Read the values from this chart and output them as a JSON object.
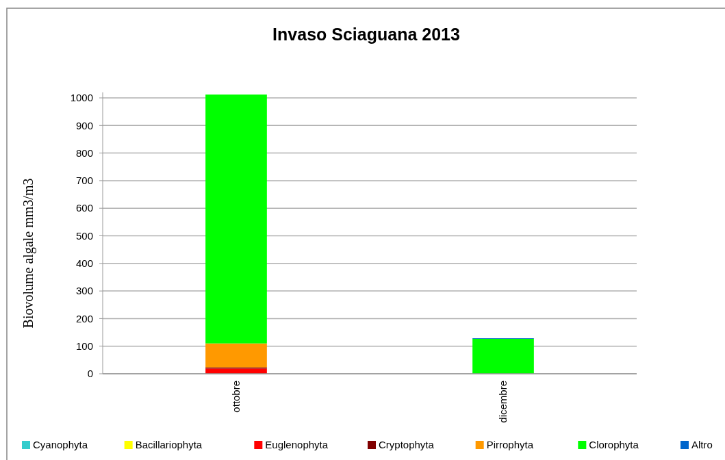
{
  "chart_data": {
    "type": "bar",
    "title": "Invaso Sciaguana 2013",
    "ylabel": "Biovolume algale mm3/m3",
    "categories": [
      "ottobre",
      "dicembre"
    ],
    "stacked": true,
    "series": [
      {
        "name": "Cyanophyta",
        "color": "#33cccc",
        "values": [
          0,
          0
        ]
      },
      {
        "name": "Bacillariophyta",
        "color": "#ffff00",
        "values": [
          0,
          0
        ]
      },
      {
        "name": "Euglenophyta",
        "color": "#ff0000",
        "values": [
          19,
          0
        ]
      },
      {
        "name": "Cryptophyta",
        "color": "#800000",
        "values": [
          4,
          0
        ]
      },
      {
        "name": "Pirrophyta",
        "color": "#ff9900",
        "values": [
          87,
          0
        ]
      },
      {
        "name": "Clorophyta",
        "color": "#00ff00",
        "values": [
          902,
          127
        ]
      },
      {
        "name": "Altro",
        "color": "#0066cc",
        "values": [
          0,
          2
        ]
      }
    ],
    "ylim": [
      0,
      1020
    ],
    "yticks": [
      0,
      100,
      200,
      300,
      400,
      500,
      600,
      700,
      800,
      900,
      1000
    ],
    "grid": "y",
    "legend": "bottom"
  }
}
